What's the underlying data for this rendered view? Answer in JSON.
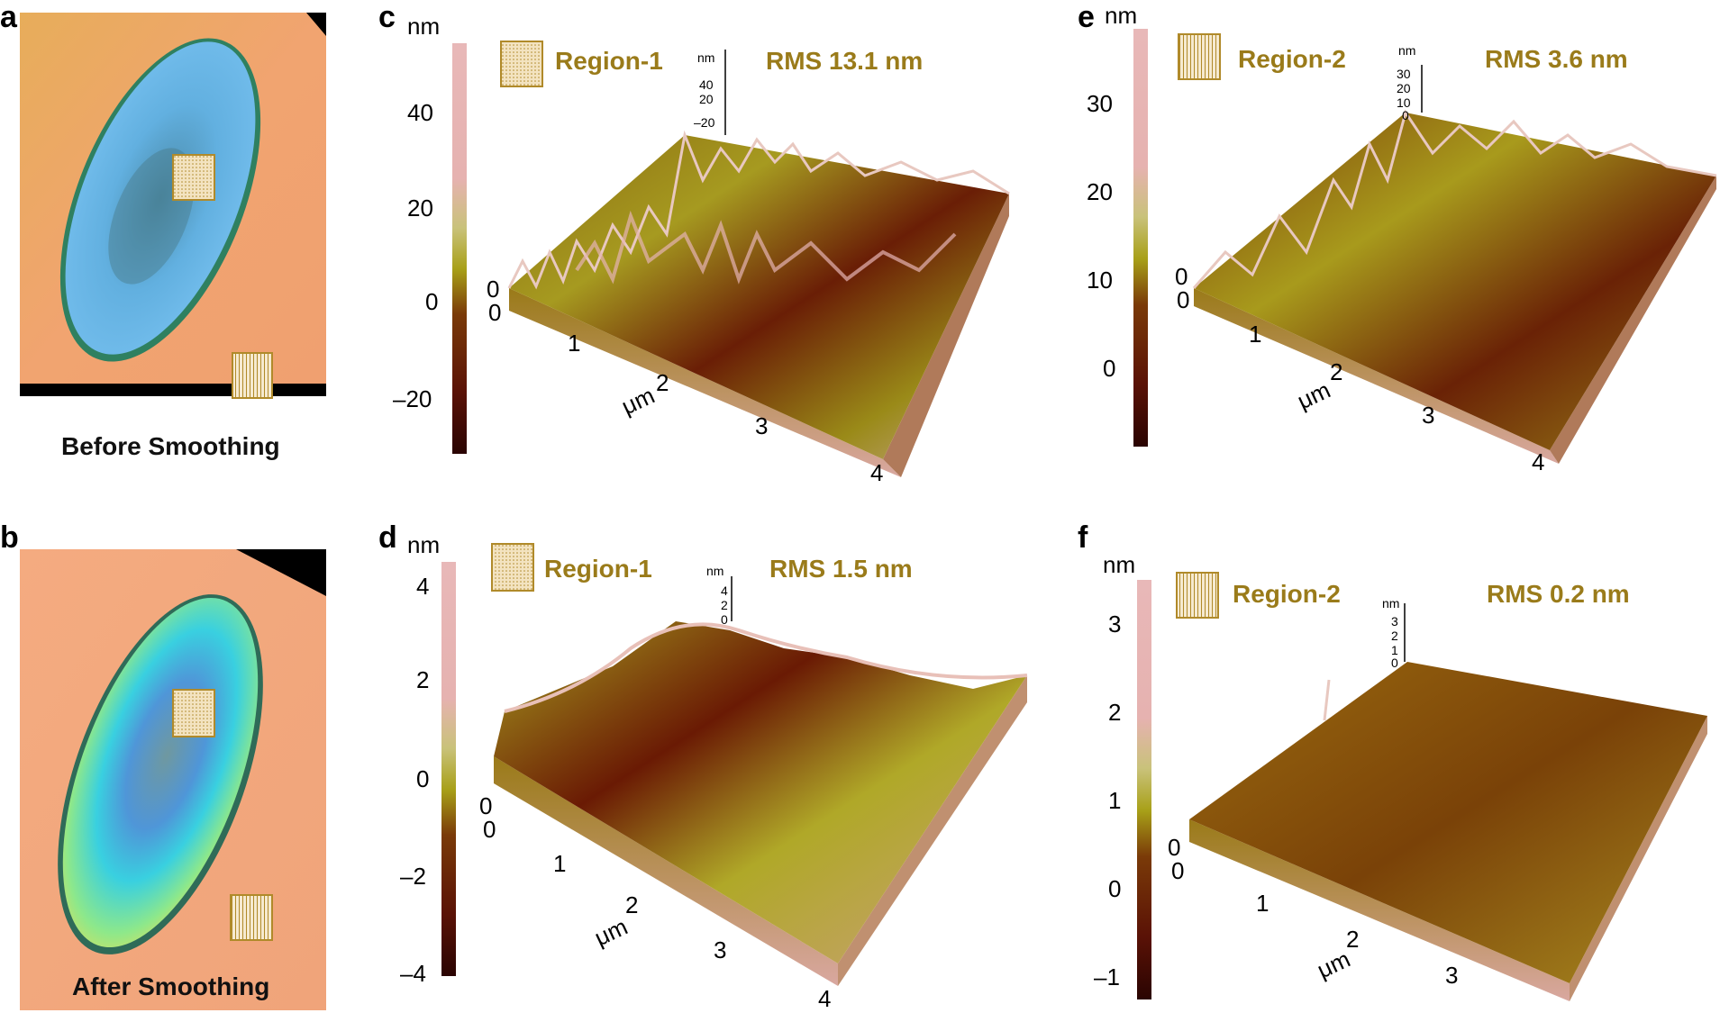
{
  "panels": {
    "a": {
      "letter": "a",
      "caption": "Before Smoothing"
    },
    "b": {
      "letter": "b",
      "caption": "After Smoothing"
    },
    "c": {
      "letter": "c",
      "unit": "nm",
      "scale_ticks": [
        "40",
        "20",
        "0",
        "–20"
      ],
      "region": "Region-1",
      "rms": "RMS 13.1 nm",
      "z_unit": "nm",
      "z_ticks": [
        "40",
        "20",
        "–20"
      ],
      "xy_ticks": [
        "0",
        "0",
        "1",
        "2",
        "3",
        "4"
      ],
      "xy_unit": "μm"
    },
    "d": {
      "letter": "d",
      "unit": "nm",
      "scale_ticks": [
        "4",
        "2",
        "0",
        "–2",
        "–4"
      ],
      "region": "Region-1",
      "rms": "RMS 1.5 nm",
      "z_unit": "nm",
      "z_ticks": [
        "4",
        "2",
        "0"
      ],
      "xy_ticks": [
        "0",
        "0",
        "1",
        "2",
        "3",
        "4"
      ],
      "xy_unit": "μm"
    },
    "e": {
      "letter": "e",
      "unit": "nm",
      "scale_ticks": [
        "30",
        "20",
        "10",
        "0"
      ],
      "region": "Region-2",
      "rms": "RMS 3.6 nm",
      "z_unit": "nm",
      "z_ticks": [
        "30",
        "20",
        "10",
        "0"
      ],
      "xy_ticks": [
        "0",
        "0",
        "1",
        "2",
        "3",
        "4"
      ],
      "xy_unit": "μm"
    },
    "f": {
      "letter": "f",
      "unit": "nm",
      "scale_ticks": [
        "3",
        "2",
        "1",
        "0",
        "–1"
      ],
      "region": "Region-2",
      "rms": "RMS 0.2 nm",
      "z_unit": "nm",
      "z_ticks": [
        "3",
        "2",
        "1",
        "0"
      ],
      "xy_ticks": [
        "0",
        "0",
        "1",
        "2",
        "3"
      ],
      "xy_unit": "μm"
    }
  },
  "colors": {
    "region_marker": "#b08a2a",
    "text_gold": "#9a7b1a",
    "afm_low": "#3a0a04",
    "afm_mid": "#b5b020",
    "afm_high": "#e6b4b4",
    "optical_bg": "#f0a26a",
    "ellipse_before": "#6fb6e8",
    "ellipse_after": "#7fe0d0"
  }
}
